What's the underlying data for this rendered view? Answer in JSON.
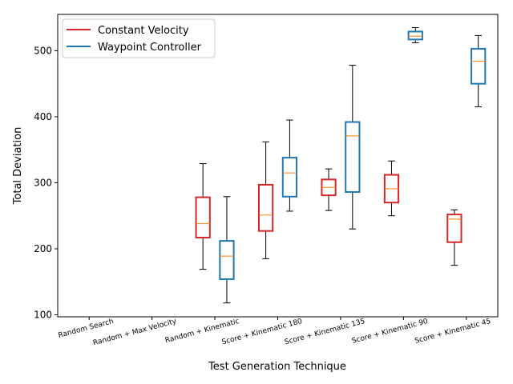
{
  "chart_data": {
    "type": "box",
    "xlabel": "Test Generation Technique",
    "ylabel": "Total Deviation",
    "ylim": [
      97,
      555
    ],
    "yticks": [
      100,
      200,
      300,
      400,
      500
    ],
    "grid": false,
    "legend_position": "top-left",
    "categories": [
      "Random Search",
      "Random + Max Velocity",
      "Random + Kinematic",
      "Score + Kinematic 180",
      "Score + Kinematic 135",
      "Score + Kinematic 90",
      "Score + Kinematic 45"
    ],
    "series": [
      {
        "name": "Constant Velocity",
        "color": "#d62728",
        "boxes": [
          null,
          null,
          {
            "whislo": 169,
            "q1": 217,
            "med": 238,
            "q3": 278,
            "whishi": 329
          },
          {
            "whislo": 185,
            "q1": 227,
            "med": 251,
            "q3": 297,
            "whishi": 362
          },
          {
            "whislo": 258,
            "q1": 281,
            "med": 293,
            "q3": 305,
            "whishi": 321
          },
          {
            "whislo": 250,
            "q1": 270,
            "med": 291,
            "q3": 312,
            "whishi": 333
          },
          {
            "whislo": 175,
            "q1": 210,
            "med": 245,
            "q3": 252,
            "whishi": 259
          }
        ]
      },
      {
        "name": "Waypoint Controller",
        "color": "#1f77b4",
        "boxes": [
          null,
          null,
          {
            "whislo": 118,
            "q1": 154,
            "med": 189,
            "q3": 212,
            "whishi": 279
          },
          {
            "whislo": 257,
            "q1": 279,
            "med": 315,
            "q3": 338,
            "whishi": 395
          },
          {
            "whislo": 230,
            "q1": 286,
            "med": 371,
            "q3": 392,
            "whishi": 478
          },
          {
            "whislo": 512,
            "q1": 517,
            "med": 522,
            "q3": 529,
            "whishi": 535
          },
          {
            "whislo": 415,
            "q1": 450,
            "med": 484,
            "q3": 503,
            "whishi": 523
          }
        ]
      }
    ],
    "median_color": "#ff7f0e"
  }
}
